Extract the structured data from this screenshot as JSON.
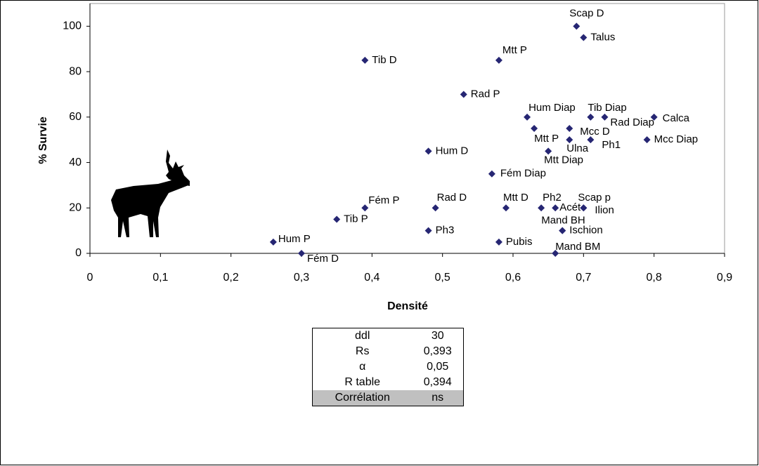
{
  "chart_data": {
    "type": "scatter",
    "x_label": "Densité",
    "y_label": "% Survie",
    "color": "#262673",
    "xlim": [
      0,
      0.9
    ],
    "ylim": [
      0,
      110
    ],
    "xticks": [
      0,
      {
        "value": 0.1,
        "label": "0,1"
      },
      {
        "value": 0.2,
        "label": "0,2"
      },
      {
        "value": 0.3,
        "label": "0,3"
      },
      {
        "value": 0.4,
        "label": "0,4"
      },
      {
        "value": 0.5,
        "label": "0,5"
      },
      {
        "value": 0.6,
        "label": "0,6"
      },
      {
        "value": 0.7,
        "label": "0,7"
      },
      {
        "value": 0.8,
        "label": "0,8"
      },
      {
        "value": 0.9,
        "label": "0,9"
      }
    ],
    "yticks": [
      0,
      20,
      40,
      60,
      80,
      100
    ],
    "point_labels": [
      "Scap D",
      "Talus",
      "Tib D",
      "Mtt P",
      "Rad P",
      "Hum Diap",
      "Tib Diap",
      "Rad Diap",
      "Calca",
      "Mtt P",
      "Mcc D",
      "Ulna",
      "Ph1",
      "Mcc Diap",
      "Mtt Diap",
      "Hum D",
      "Fém Diap",
      "Fém P",
      "Rad D",
      "Mtt D",
      "Ph2",
      "Acét",
      "Scap p",
      "Ilion",
      "Tib P",
      "Ph3",
      "Mand BH",
      "Ischion",
      "Hum P",
      "Pubis",
      "Fém D",
      "Mand BM"
    ],
    "x": [
      0.69,
      0.7,
      0.39,
      0.58,
      0.53,
      0.62,
      0.71,
      0.73,
      0.8,
      0.63,
      0.68,
      0.68,
      0.71,
      0.79,
      0.65,
      0.48,
      0.57,
      0.39,
      0.49,
      0.59,
      0.64,
      0.66,
      0.7,
      0.7,
      0.35,
      0.48,
      0.67,
      0.67,
      0.26,
      0.58,
      0.3,
      0.66
    ],
    "values": [
      100,
      95,
      85,
      85,
      70,
      60,
      60,
      60,
      60,
      55,
      55,
      50,
      50,
      50,
      45,
      45,
      35,
      20,
      20,
      20,
      20,
      20,
      20,
      20,
      15,
      10,
      10,
      10,
      5,
      5,
      0,
      0
    ]
  },
  "table": {
    "rows": [
      [
        "ddl",
        "30"
      ],
      [
        "Rs",
        "0,393"
      ],
      [
        "α",
        "0,05"
      ],
      [
        "R table",
        "0,394"
      ],
      [
        "Corrélation",
        "ns"
      ]
    ]
  }
}
